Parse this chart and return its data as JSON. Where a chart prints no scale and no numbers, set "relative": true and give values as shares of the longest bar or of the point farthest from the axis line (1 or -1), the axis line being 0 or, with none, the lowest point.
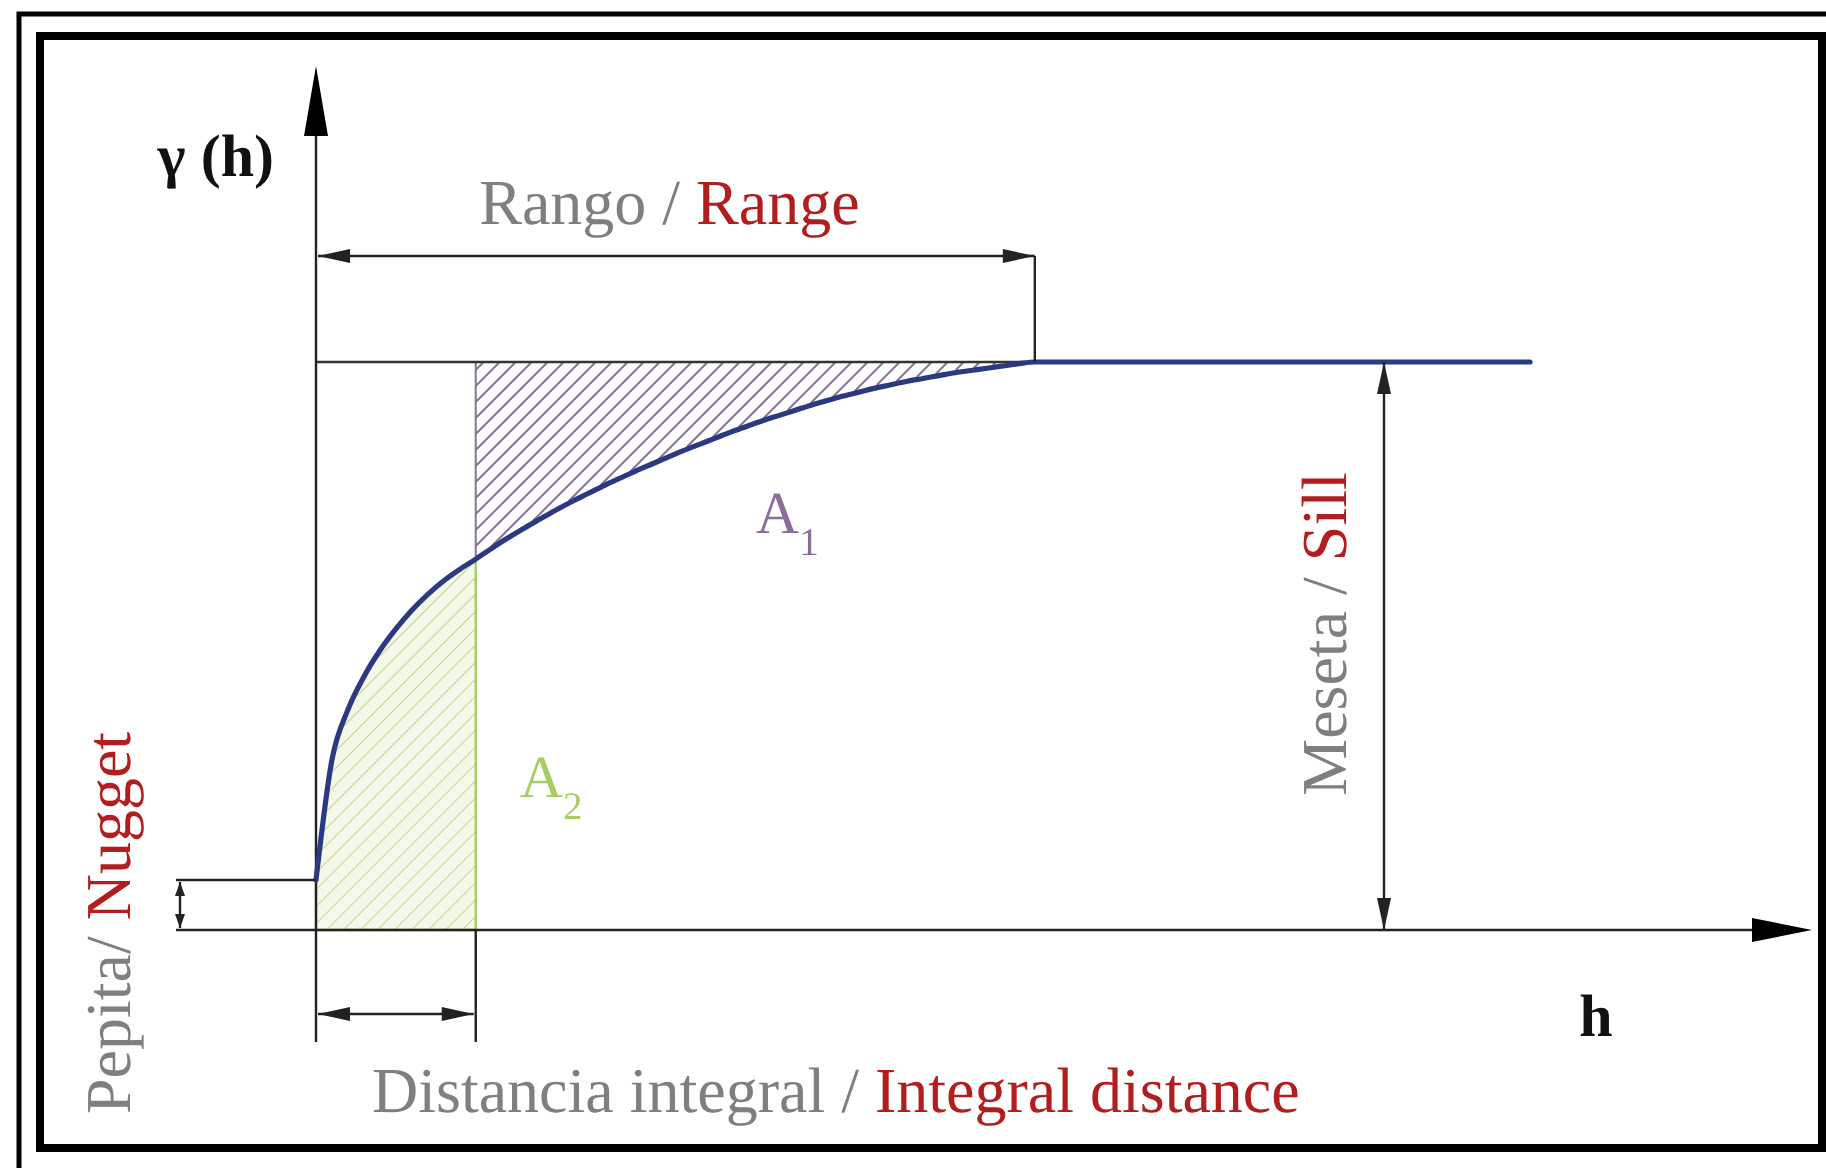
{
  "chart_data": {
    "type": "line",
    "relative": true,
    "xlabel": "h",
    "ylabel": "γ (h)",
    "categories": [
      null,
      null,
      null,
      null,
      null,
      null,
      null,
      null,
      null,
      null,
      null,
      null,
      null,
      null,
      null,
      null,
      null,
      null,
      null,
      null,
      null,
      null,
      null,
      null,
      null,
      null,
      null,
      null,
      null,
      null,
      null,
      null,
      null,
      null,
      null,
      null,
      null,
      null,
      null,
      null,
      null,
      null,
      null,
      null,
      null,
      null,
      null,
      null,
      null,
      null,
      null,
      null,
      null,
      null,
      null,
      null,
      null,
      null,
      null,
      null,
      null,
      null,
      null,
      null,
      null,
      null,
      null,
      null,
      null,
      null,
      null,
      null,
      null,
      null,
      null,
      null,
      null
    ],
    "series": [
      {
        "type": "area",
        "name": "A$_{2}$",
        "color": "#a8cc66",
        "values": [
          0.088,
          0.3,
          0.388,
          0.446,
          0.492,
          0.53,
          0.563,
          0.591,
          0.615,
          0.635,
          0.653,
          null,
          null,
          null,
          null,
          null,
          null,
          null,
          null,
          null,
          null,
          null,
          null,
          null,
          null,
          null,
          null,
          null,
          null,
          null,
          null,
          null,
          null,
          null,
          null,
          null,
          null,
          null,
          null,
          null,
          null,
          null,
          null,
          null,
          null,
          null,
          null,
          null,
          null,
          null,
          null,
          null,
          null,
          null,
          null,
          null,
          null,
          null,
          null,
          null,
          null,
          null,
          null,
          null,
          null,
          null,
          null,
          null,
          null,
          null,
          null,
          null,
          null,
          null,
          null,
          null,
          null
        ]
      },
      {
        "color": "#2b3a80",
        "values": [
          0.088,
          0.3,
          0.388,
          0.446,
          0.492,
          0.53,
          0.563,
          0.591,
          0.615,
          0.635,
          0.653,
          0.672,
          0.69,
          0.707,
          0.723,
          0.739,
          0.754,
          0.768,
          0.782,
          0.795,
          0.808,
          0.82,
          0.832,
          0.844,
          0.855,
          0.866,
          0.877,
          0.887,
          0.897,
          0.906,
          0.915,
          0.924,
          0.932,
          0.94,
          0.947,
          0.954,
          0.96,
          0.966,
          0.971,
          0.976,
          0.981,
          0.985,
          0.989,
          0.993,
          0.997,
          1,
          1,
          1,
          1,
          1,
          1,
          1,
          1,
          1,
          1,
          1,
          1,
          1,
          1,
          1,
          1,
          1,
          1,
          1,
          1,
          1,
          1,
          1,
          1,
          1,
          1,
          1,
          1,
          1,
          1,
          1,
          1
        ]
      }
    ],
    "ref_lines": [
      {
        "axis": "y",
        "value": 1,
        "color": "#333333"
      }
    ],
    "annotations": [
      "Rango / Range",
      "Meseta / Sill",
      "Pepita/ Nugget",
      "Distancia integral / Integral distance",
      "A$_{1}$"
    ]
  }
}
